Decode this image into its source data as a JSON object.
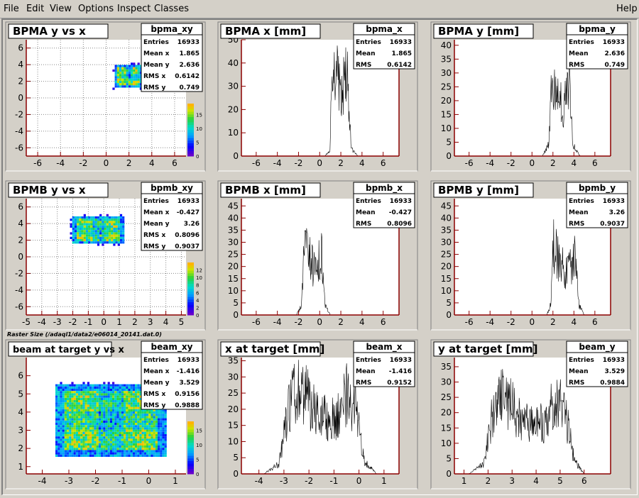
{
  "menu": {
    "file": "File",
    "edit": "Edit",
    "view": "View",
    "options": "Options",
    "inspect": "Inspect",
    "classes": "Classes",
    "help": "Help"
  },
  "footnote": "Raster Size (/adaql1/data2/e06014_20141.dat.0)",
  "stat_labels": {
    "entries": "Entries",
    "mean": "Mean",
    "mean_x": "Mean x",
    "mean_y": "Mean y",
    "rms": "RMS",
    "rms_x": "RMS x",
    "rms_y": "RMS y"
  },
  "colors": {
    "frame_bg": "#d4d0c8",
    "pad_bg": "#ffffff",
    "axis": "#8b0000",
    "hist_line": "#000000"
  },
  "chart_data": [
    {
      "type": "heatmap",
      "title": "BPMA y vs x",
      "stats_title": "bpma_xy",
      "stats": {
        "entries": "16933",
        "mean_x": "1.865",
        "mean_y": "2.636",
        "rms_x": "0.6142",
        "rms_y": "0.749"
      },
      "xlim": [
        -7,
        7
      ],
      "ylim": [
        -7,
        7
      ],
      "x_ticks": [
        -6,
        -4,
        -2,
        0,
        2,
        4,
        6
      ],
      "y_ticks": [
        -6,
        -4,
        -2,
        0,
        2,
        4,
        6
      ],
      "grid": true,
      "blob": {
        "x": [
          0.8,
          3.0
        ],
        "y": [
          1.4,
          3.9
        ]
      },
      "z_ticks": [
        0,
        5,
        10,
        15
      ],
      "zlim": [
        0,
        19
      ],
      "has_colorbar": true
    },
    {
      "type": "area",
      "title": "BPMA x [mm]",
      "stats_title": "bpma_x",
      "stats": {
        "entries": "16933",
        "mean": "1.865",
        "rms": "0.6142"
      },
      "xlim": [
        -7.4,
        7.5
      ],
      "ylim": [
        0,
        50
      ],
      "x_ticks": [
        -6,
        -4,
        -2,
        0,
        2,
        4,
        6
      ],
      "y_ticks": [
        0,
        10,
        20,
        30,
        40,
        50
      ],
      "shape": {
        "x": [
          0.5,
          1.0,
          1.1,
          1.6,
          2.0,
          2.6,
          3.0,
          3.6
        ],
        "y": [
          0,
          3,
          30,
          36,
          25,
          35,
          3,
          0
        ]
      }
    },
    {
      "type": "area",
      "title": "BPMA y [mm]",
      "stats_title": "bpma_y",
      "stats": {
        "entries": "16933",
        "mean": "2.636",
        "rms": "0.749"
      },
      "xlim": [
        -7.4,
        7.5
      ],
      "ylim": [
        0,
        42
      ],
      "x_ticks": [
        -6,
        -4,
        -2,
        0,
        2,
        4,
        6
      ],
      "y_ticks": [
        0,
        5,
        10,
        15,
        20,
        25,
        30,
        35,
        40
      ],
      "shape": {
        "x": [
          1.0,
          1.6,
          1.9,
          2.4,
          3.0,
          3.6,
          3.9,
          4.6
        ],
        "y": [
          0,
          4,
          28,
          22,
          17,
          24,
          4,
          0
        ]
      }
    },
    {
      "type": "heatmap",
      "title": "BPMB y vs x",
      "stats_title": "bpmb_xy",
      "stats": {
        "entries": "16933",
        "mean_x": "-0.427",
        "mean_y": "3.26",
        "rms_x": "0.8096",
        "rms_y": "0.9037"
      },
      "xlim": [
        -5,
        5.3
      ],
      "ylim": [
        -7,
        7
      ],
      "x_ticks": [
        -5,
        -4,
        -3,
        -2,
        -1,
        0,
        1,
        2,
        3,
        4,
        5
      ],
      "y_ticks": [
        -6,
        -4,
        -2,
        0,
        2,
        4,
        6
      ],
      "grid": true,
      "blob": {
        "x": [
          -2.0,
          1.1
        ],
        "y": [
          1.8,
          4.8
        ]
      },
      "z_ticks": [
        0,
        2,
        4,
        6,
        8,
        10,
        12
      ],
      "zlim": [
        0,
        14
      ],
      "has_colorbar": true
    },
    {
      "type": "area",
      "title": "BPMB x [mm]",
      "stats_title": "bpmb_x",
      "stats": {
        "entries": "16933",
        "mean": "-0.427",
        "rms": "0.8096"
      },
      "xlim": [
        -7.4,
        7.5
      ],
      "ylim": [
        0,
        48
      ],
      "x_ticks": [
        -6,
        -4,
        -2,
        0,
        2,
        4,
        6
      ],
      "y_ticks": [
        0,
        5,
        10,
        15,
        20,
        25,
        30,
        35,
        40,
        45
      ],
      "shape": {
        "x": [
          -2.2,
          -1.7,
          -1.5,
          -1.0,
          -0.4,
          0.2,
          0.5,
          1.0
        ],
        "y": [
          0,
          4,
          28,
          23,
          17,
          25,
          4,
          0
        ]
      }
    },
    {
      "type": "area",
      "title": "BPMB y [mm]",
      "stats_title": "bpmb_y",
      "stats": {
        "entries": "16933",
        "mean": "3.26",
        "rms": "0.9037"
      },
      "xlim": [
        -7.4,
        7.5
      ],
      "ylim": [
        0,
        48
      ],
      "x_ticks": [
        -6,
        -4,
        -2,
        0,
        2,
        4,
        6
      ],
      "y_ticks": [
        0,
        5,
        10,
        15,
        20,
        25,
        30,
        35,
        40,
        45
      ],
      "shape": {
        "x": [
          1.4,
          1.8,
          2.0,
          2.6,
          3.3,
          4.1,
          4.5,
          5.0
        ],
        "y": [
          0,
          4,
          28,
          22,
          17,
          23,
          4,
          0
        ]
      }
    },
    {
      "type": "heatmap",
      "title": "beam at target y vs x",
      "stats_title": "beam_xy",
      "stats": {
        "entries": "16933",
        "mean_x": "-1.416",
        "mean_y": "3.529",
        "rms_x": "0.9156",
        "rms_y": "0.9888"
      },
      "xlim": [
        -4.6,
        1.4
      ],
      "ylim": [
        0.6,
        7.0
      ],
      "x_ticks": [
        -4,
        -3,
        -2,
        -1,
        0,
        1
      ],
      "y_ticks": [
        1,
        2,
        3,
        4,
        5,
        6
      ],
      "grid": false,
      "blob": {
        "x": [
          -3.4,
          0.5
        ],
        "y": [
          1.7,
          5.5
        ]
      },
      "z_ticks": [
        0,
        5,
        10,
        15
      ],
      "zlim": [
        0,
        18
      ],
      "has_colorbar": true
    },
    {
      "type": "area",
      "title": "x at target [mm]",
      "stats_title": "beam_x",
      "stats": {
        "entries": "16933",
        "mean": "-1.416",
        "rms": "0.9152"
      },
      "xlim": [
        -4.7,
        1.6
      ],
      "ylim": [
        0,
        36
      ],
      "x_ticks": [
        -4,
        -3,
        -2,
        -1,
        0,
        1
      ],
      "y_ticks": [
        0,
        5,
        10,
        15,
        20,
        25,
        30,
        35
      ],
      "shape": {
        "x": [
          -3.8,
          -3.2,
          -2.8,
          -2.4,
          -1.7,
          -0.9,
          -0.5,
          -0.1,
          0.2,
          0.7
        ],
        "y": [
          0,
          3,
          20,
          27,
          18,
          16,
          24,
          20,
          4,
          0
        ]
      }
    },
    {
      "type": "area",
      "title": "y at target [mm]",
      "stats_title": "beam_y",
      "stats": {
        "entries": "16933",
        "mean": "3.529",
        "rms": "0.9884"
      },
      "xlim": [
        0.6,
        7.1
      ],
      "ylim": [
        0,
        38
      ],
      "x_ticks": [
        1,
        2,
        3,
        4,
        5,
        6
      ],
      "y_ticks": [
        0,
        5,
        10,
        15,
        20,
        25,
        30,
        35
      ],
      "shape": {
        "x": [
          1.2,
          1.8,
          2.2,
          2.6,
          3.5,
          4.3,
          4.8,
          5.2,
          5.6,
          6.0
        ],
        "y": [
          0,
          3,
          20,
          25,
          16,
          16,
          24,
          20,
          4,
          0
        ]
      }
    }
  ]
}
